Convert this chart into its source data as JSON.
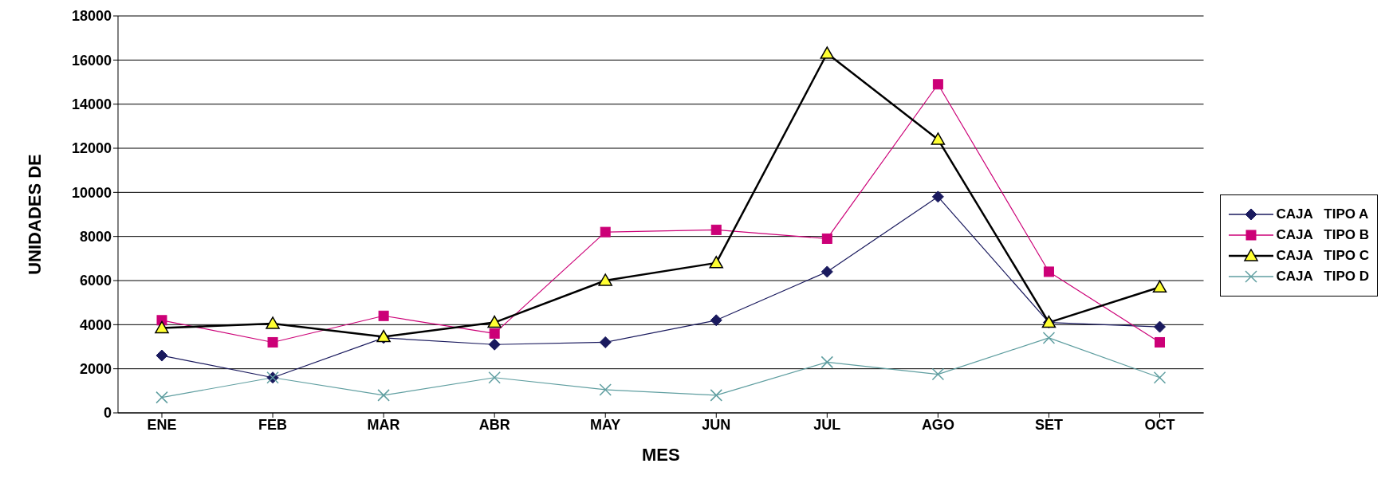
{
  "chart_data": {
    "type": "line",
    "xlabel": "MES",
    "ylabel": "UNIDADES DE",
    "categories": [
      "ENE",
      "FEB",
      "MAR",
      "ABR",
      "MAY",
      "JUN",
      "JUL",
      "AGO",
      "SET",
      "OCT"
    ],
    "series": [
      {
        "name": "CAJA   TIPO A",
        "color": "#1a1a5e",
        "marker": "diamond",
        "values": [
          2600,
          1600,
          3400,
          3100,
          3200,
          4200,
          6400,
          9800,
          4100,
          3900
        ]
      },
      {
        "name": "CAJA   TIPO B",
        "color": "#cc0077",
        "marker": "square",
        "values": [
          4200,
          3200,
          4400,
          3600,
          8200,
          8300,
          7900,
          14900,
          6400,
          3200
        ]
      },
      {
        "name": "CAJA   TIPO C",
        "color": "#000000",
        "marker": "triangle",
        "values": [
          3850,
          4050,
          3450,
          4100,
          6000,
          6800,
          16300,
          12400,
          4100,
          5700
        ]
      },
      {
        "name": "CAJA   TIPO D",
        "color": "#5f9ea0",
        "marker": "cross",
        "values": [
          700,
          1600,
          800,
          1600,
          1050,
          800,
          2300,
          1750,
          3400,
          1600
        ]
      }
    ],
    "ylim": [
      0,
      18000
    ],
    "yticks": [
      0,
      2000,
      4000,
      6000,
      8000,
      10000,
      12000,
      14000,
      16000,
      18000
    ],
    "grid": "y",
    "legend": "right"
  }
}
